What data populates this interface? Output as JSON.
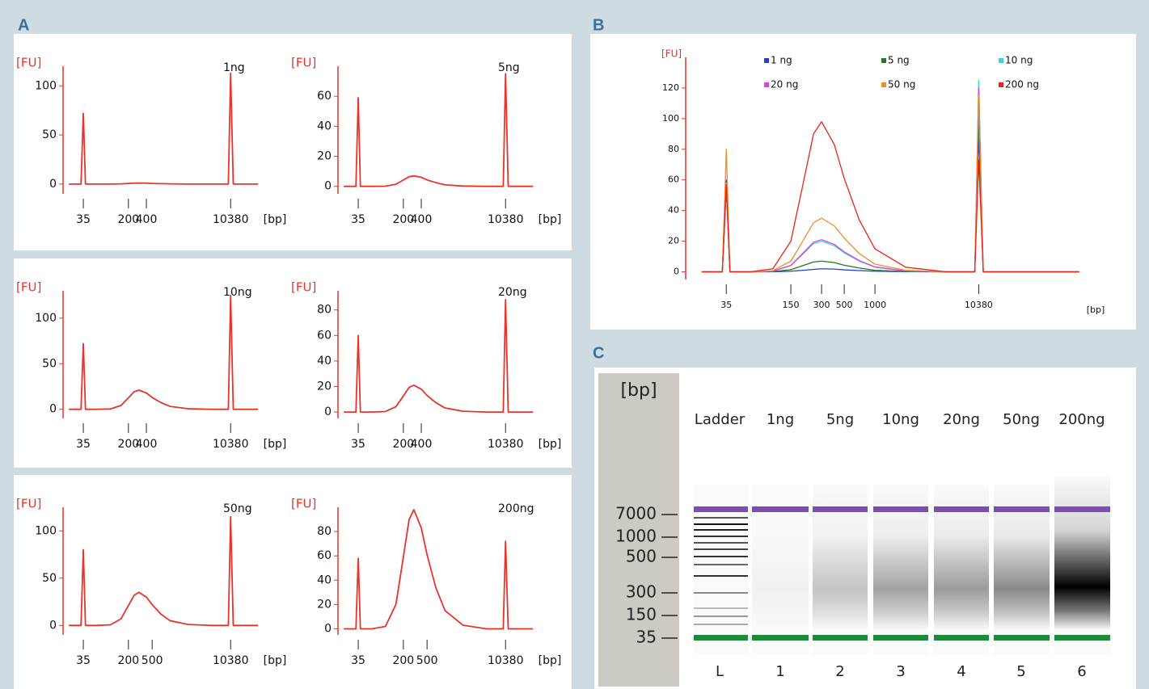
{
  "panels": {
    "a": "A",
    "b": "B",
    "c": "C"
  },
  "chart_data": [
    {
      "type": "line",
      "title": "1ng",
      "xlabel": "[bp]",
      "ylabel": "[FU]",
      "xscale": "log",
      "x": [
        20,
        32,
        35,
        38,
        60,
        100,
        150,
        200,
        250,
        300,
        400,
        500,
        700,
        1000,
        2000,
        5000,
        9500,
        10380,
        11500,
        20000,
        30000
      ],
      "series": [
        {
          "color": "#e8332a",
          "values": [
            0,
            0,
            72,
            0,
            0,
            0,
            0.2,
            0.6,
            0.9,
            1,
            0.9,
            0.6,
            0.4,
            0.2,
            0,
            0,
            0,
            113,
            0,
            0,
            0
          ]
        }
      ],
      "xlim": [
        16,
        54000
      ],
      "ylim": [
        -10,
        120
      ],
      "xticks": [
        35,
        200,
        400,
        10380
      ],
      "yticks": [
        0,
        50,
        100
      ]
    },
    {
      "type": "line",
      "title": "5ng",
      "xlabel": "[bp]",
      "ylabel": "[FU]",
      "xscale": "log",
      "x": [
        20,
        32,
        35,
        38,
        60,
        100,
        150,
        200,
        250,
        300,
        400,
        500,
        700,
        1000,
        2000,
        5000,
        9500,
        10380,
        11500,
        20000,
        30000
      ],
      "series": [
        {
          "color": "#e8332a",
          "values": [
            0,
            0,
            59,
            0,
            0,
            0.1,
            1.4,
            4.2,
            6.4,
            7,
            6,
            4.3,
            2.5,
            1,
            0.2,
            0,
            0,
            75,
            0,
            0,
            0
          ]
        }
      ],
      "xlim": [
        16,
        54000
      ],
      "ylim": [
        -5,
        80
      ],
      "xticks": [
        35,
        200,
        400,
        10380
      ],
      "yticks": [
        0,
        20,
        40,
        60
      ]
    },
    {
      "type": "line",
      "title": "10ng",
      "xlabel": "[bp]",
      "ylabel": "[FU]",
      "xscale": "log",
      "x": [
        20,
        32,
        35,
        38,
        60,
        100,
        150,
        200,
        250,
        300,
        400,
        500,
        700,
        1000,
        2000,
        5000,
        9500,
        10380,
        11500,
        20000,
        30000
      ],
      "series": [
        {
          "color": "#e8332a",
          "values": [
            0,
            0,
            72,
            0,
            0,
            0.4,
            4.2,
            12.6,
            19.3,
            21,
            17.9,
            13,
            7.4,
            3.2,
            0.6,
            0,
            0,
            125,
            0,
            0,
            0
          ]
        }
      ],
      "xlim": [
        16,
        54000
      ],
      "ylim": [
        -10,
        130
      ],
      "xticks": [
        35,
        200,
        400,
        10380
      ],
      "yticks": [
        0,
        50,
        100
      ]
    },
    {
      "type": "line",
      "title": "20ng",
      "xlabel": "[bp]",
      "ylabel": "[FU]",
      "xscale": "log",
      "x": [
        20,
        32,
        35,
        38,
        60,
        100,
        150,
        200,
        250,
        300,
        400,
        500,
        700,
        1000,
        2000,
        5000,
        9500,
        10380,
        11500,
        20000,
        30000
      ],
      "series": [
        {
          "color": "#e8332a",
          "values": [
            0,
            0,
            60,
            0,
            0,
            0.4,
            4.2,
            12.6,
            19.3,
            21,
            17.9,
            13,
            7.4,
            3.2,
            0.6,
            0,
            0,
            88,
            0,
            0,
            0
          ]
        }
      ],
      "xlim": [
        16,
        54000
      ],
      "ylim": [
        -5,
        95
      ],
      "xticks": [
        35,
        200,
        400,
        10380
      ],
      "yticks": [
        0,
        20,
        40,
        60,
        80
      ]
    },
    {
      "type": "line",
      "title": "50ng",
      "xlabel": "[bp]",
      "ylabel": "[FU]",
      "xscale": "log",
      "x": [
        20,
        32,
        35,
        38,
        60,
        100,
        150,
        200,
        250,
        300,
        400,
        500,
        700,
        1000,
        2000,
        5000,
        9500,
        10380,
        11500,
        20000,
        30000
      ],
      "series": [
        {
          "color": "#e8332a",
          "values": [
            0,
            0,
            80,
            0,
            0,
            0.7,
            7,
            21,
            32,
            35,
            30,
            22,
            12,
            5,
            1,
            0,
            0,
            115,
            0,
            0,
            0
          ]
        }
      ],
      "xlim": [
        16,
        54000
      ],
      "ylim": [
        -10,
        125
      ],
      "xticks": [
        35,
        200,
        500,
        10380
      ],
      "yticks": [
        0,
        50,
        100
      ]
    },
    {
      "type": "line",
      "title": "200ng",
      "xlabel": "[bp]",
      "ylabel": "[FU]",
      "xscale": "log",
      "x": [
        20,
        32,
        35,
        38,
        60,
        100,
        150,
        200,
        250,
        300,
        400,
        500,
        700,
        1000,
        2000,
        5000,
        9500,
        10380,
        11500,
        20000,
        30000
      ],
      "series": [
        {
          "color": "#e8332a",
          "values": [
            0,
            0,
            58,
            0,
            0,
            2,
            20,
            59,
            90,
            98,
            83,
            61,
            34,
            15,
            3,
            0,
            0,
            72,
            0,
            0,
            0
          ]
        }
      ],
      "xlim": [
        16,
        54000
      ],
      "ylim": [
        -5,
        100
      ],
      "xticks": [
        35,
        200,
        500,
        10380
      ],
      "yticks": [
        0,
        20,
        40,
        60,
        80
      ]
    },
    {
      "type": "line",
      "xlabel": "[bp]",
      "ylabel": "[FU]",
      "xscale": "log",
      "x": [
        20,
        32,
        35,
        38,
        60,
        100,
        150,
        200,
        250,
        300,
        400,
        500,
        700,
        1000,
        2000,
        5000,
        9500,
        10380,
        11500,
        20000,
        30000,
        100000
      ],
      "series": [
        {
          "name": "1 ng",
          "color": "#1f3fd6",
          "values": [
            0,
            0,
            60,
            0,
            0,
            0,
            0.4,
            1,
            1.6,
            2,
            1.8,
            1.3,
            0.8,
            0.4,
            0.1,
            0,
            0,
            90,
            0,
            0,
            0,
            0
          ]
        },
        {
          "name": "5 ng",
          "color": "#1e7a1e",
          "values": [
            0,
            0,
            55,
            0,
            0,
            0.1,
            1.4,
            4.2,
            6.4,
            7,
            6,
            4.3,
            2.5,
            1,
            0.2,
            0,
            0,
            100,
            0,
            0,
            0,
            0
          ]
        },
        {
          "name": "10 ng",
          "color": "#33d6e6",
          "values": [
            0,
            0,
            58,
            0,
            0,
            0.4,
            4,
            12,
            18.4,
            20,
            17,
            12.4,
            7,
            3,
            0.6,
            0,
            0,
            125,
            0,
            0,
            0,
            0
          ]
        },
        {
          "name": "20 ng",
          "color": "#e040e0",
          "values": [
            0,
            0,
            55,
            0,
            0,
            0.4,
            4.2,
            12.6,
            19.3,
            21,
            17.9,
            13,
            7.4,
            3.2,
            0.6,
            0,
            0,
            120,
            0,
            0,
            0,
            0
          ]
        },
        {
          "name": "50 ng",
          "color": "#f28c28",
          "values": [
            0,
            0,
            80,
            0,
            0,
            0.7,
            7,
            21,
            32,
            35,
            30,
            22,
            12,
            5,
            1,
            0,
            0,
            115,
            0,
            0,
            0,
            0
          ]
        },
        {
          "name": "200 ng",
          "color": "#e8241a",
          "values": [
            0,
            0,
            57,
            0,
            0,
            2,
            20,
            59,
            90,
            98,
            83,
            61,
            34,
            15,
            3,
            0,
            0,
            73,
            0,
            0,
            0,
            0
          ]
        }
      ],
      "xlim": [
        14,
        145000
      ],
      "ylim": [
        -5,
        140
      ],
      "xticks": [
        35,
        150,
        300,
        500,
        1000,
        10380
      ],
      "yticks": [
        0,
        20,
        40,
        60,
        80,
        100,
        120
      ]
    }
  ],
  "gel": {
    "ylabel": "[bp]",
    "markers": [
      "7000",
      "1000",
      "500",
      "300",
      "150",
      "35"
    ],
    "lanes": [
      "Ladder",
      "1ng",
      "5ng",
      "10ng",
      "20ng",
      "50ng",
      "200ng"
    ],
    "lane_numbers": [
      "L",
      "1",
      "2",
      "3",
      "4",
      "5",
      "6"
    ]
  }
}
